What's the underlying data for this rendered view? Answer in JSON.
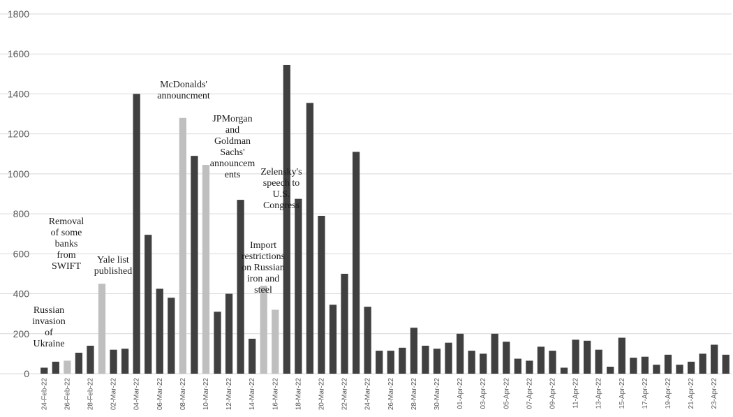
{
  "chart_data": {
    "type": "bar",
    "title": "",
    "xlabel": "",
    "ylabel": "",
    "ylim": [
      0,
      1800
    ],
    "yticks": [
      0,
      200,
      400,
      600,
      800,
      1000,
      1200,
      1400,
      1600,
      1800
    ],
    "grid": true,
    "colors": {
      "dark": "#404040",
      "light": "#bfbfbf"
    },
    "categories": [
      "24-Feb-22",
      "25-Feb-22",
      "26-Feb-22",
      "27-Feb-22",
      "28-Feb-22",
      "01-Mar-22",
      "02-Mar-22",
      "03-Mar-22",
      "04-Mar-22",
      "05-Mar-22",
      "06-Mar-22",
      "07-Mar-22",
      "08-Mar-22",
      "09-Mar-22",
      "10-Mar-22",
      "11-Mar-22",
      "12-Mar-22",
      "13-Mar-22",
      "14-Mar-22",
      "15-Mar-22",
      "16-Mar-22",
      "17-Mar-22",
      "18-Mar-22",
      "19-Mar-22",
      "20-Mar-22",
      "21-Mar-22",
      "22-Mar-22",
      "23-Mar-22",
      "24-Mar-22",
      "25-Mar-22",
      "26-Mar-22",
      "27-Mar-22",
      "28-Mar-22",
      "29-Mar-22",
      "30-Mar-22",
      "31-Mar-22",
      "01-Apr-22",
      "02-Apr-22",
      "03-Apr-22",
      "04-Apr-22",
      "05-Apr-22",
      "06-Apr-22",
      "07-Apr-22",
      "08-Apr-22",
      "09-Apr-22",
      "10-Apr-22",
      "11-Apr-22",
      "12-Apr-22",
      "13-Apr-22",
      "14-Apr-22",
      "15-Apr-22",
      "16-Apr-22",
      "17-Apr-22",
      "18-Apr-22",
      "19-Apr-22",
      "20-Apr-22",
      "21-Apr-22",
      "22-Apr-22",
      "23-Apr-22",
      "24-Apr-22"
    ],
    "tick_labels": [
      "24-Feb-22",
      "",
      "26-Feb-22",
      "",
      "28-Feb-22",
      "",
      "02-Mar-22",
      "",
      "04-Mar-22",
      "",
      "06-Mar-22",
      "",
      "08-Mar-22",
      "",
      "10-Mar-22",
      "",
      "12-Mar-22",
      "",
      "14-Mar-22",
      "",
      "16-Mar-22",
      "",
      "18-Mar-22",
      "",
      "20-Mar-22",
      "",
      "22-Mar-22",
      "",
      "24-Mar-22",
      "",
      "26-Mar-22",
      "",
      "28-Mar-22",
      "",
      "30-Mar-22",
      "",
      "01-Apr-22",
      "",
      "03-Apr-22",
      "",
      "05-Apr-22",
      "",
      "07-Apr-22",
      "",
      "09-Apr-22",
      "",
      "11-Apr-22",
      "",
      "13-Apr-22",
      "",
      "15-Apr-22",
      "",
      "17-Apr-22",
      "",
      "19-Apr-22",
      "",
      "21-Apr-22",
      "",
      "23-Apr-22",
      ""
    ],
    "values": [
      30,
      60,
      65,
      105,
      140,
      450,
      120,
      125,
      1400,
      695,
      425,
      380,
      1280,
      1090,
      1045,
      310,
      400,
      870,
      175,
      440,
      320,
      1545,
      875,
      1355,
      790,
      345,
      500,
      1110,
      335,
      115,
      115,
      130,
      230,
      140,
      125,
      155,
      200,
      115,
      100,
      200,
      160,
      75,
      65,
      135,
      115,
      30,
      170,
      165,
      120,
      35,
      180,
      80,
      85,
      45,
      95,
      45,
      60,
      100,
      145,
      95
    ],
    "highlight": [
      0,
      0,
      1,
      0,
      0,
      1,
      0,
      0,
      0,
      0,
      0,
      0,
      1,
      0,
      1,
      0,
      0,
      0,
      0,
      1,
      1,
      0,
      0,
      0,
      0,
      0,
      0,
      0,
      0,
      0,
      0,
      0,
      0,
      0,
      0,
      0,
      0,
      0,
      0,
      0,
      0,
      0,
      0,
      0,
      0,
      0,
      0,
      0,
      0,
      0,
      0,
      0,
      0,
      0,
      0,
      0,
      0,
      0,
      0,
      0
    ],
    "annotations": [
      {
        "lines": [
          "Russian",
          "invasion",
          "of",
          "Ukraine"
        ]
      },
      {
        "lines": [
          "Removal",
          "of some",
          "banks",
          "from",
          "SWIFT"
        ]
      },
      {
        "lines": [
          "Yale list",
          "published"
        ]
      },
      {
        "lines": [
          "McDonalds'",
          "announcment"
        ]
      },
      {
        "lines": [
          "JPMorgan",
          "and",
          "Goldman",
          "Sachs'",
          "announcem",
          "ents"
        ]
      },
      {
        "lines": [
          "Zelensky's",
          "speech to",
          "U.S.",
          "Congress"
        ]
      },
      {
        "lines": [
          "Import",
          "restrictions",
          "on Russian",
          "iron and",
          "steel"
        ]
      }
    ]
  }
}
